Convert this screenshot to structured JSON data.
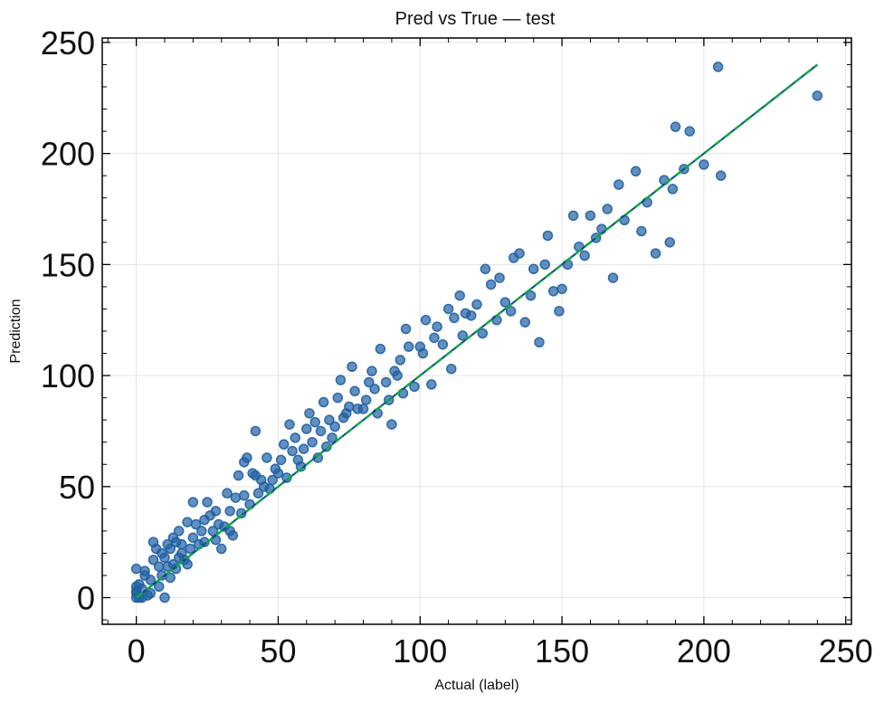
{
  "chart_data": {
    "type": "scatter",
    "title": "Pred vs True — test",
    "xlabel": "Actual (label)",
    "ylabel": "Prediction",
    "xlim": [
      -12,
      252
    ],
    "ylim": [
      -12,
      252
    ],
    "xticks": [
      0,
      50,
      100,
      150,
      200,
      250
    ],
    "yticks": [
      0,
      50,
      100,
      150,
      200,
      250
    ],
    "xtick_labels": [
      "0",
      "50",
      "100",
      "150",
      "200",
      "250"
    ],
    "ytick_labels": [
      "0",
      "50",
      "100",
      "150",
      "200",
      "250"
    ],
    "grid": true,
    "colors": {
      "points": "#1f5fa3",
      "fit_line": "#0b4a80",
      "identity_line": "#12a64a"
    },
    "fit_line": {
      "x": [
        0,
        240
      ],
      "y": [
        0,
        240
      ]
    },
    "identity_line": {
      "x": [
        0,
        240
      ],
      "y": [
        0,
        240
      ],
      "style": "dashed"
    },
    "series": [
      {
        "x": [
          0,
          0,
          0,
          0,
          0,
          1,
          1,
          2,
          2,
          3,
          3,
          4,
          5,
          5,
          6,
          6,
          7,
          8,
          8,
          9,
          9,
          10,
          10,
          11,
          11,
          12,
          12,
          13,
          13,
          14,
          14,
          15,
          15,
          16,
          16,
          17,
          18,
          18,
          19,
          20,
          20,
          21,
          22,
          23,
          24,
          24,
          25,
          26,
          27,
          28,
          28,
          29,
          30,
          31,
          32,
          33,
          33,
          34,
          35,
          36,
          37,
          38,
          38,
          39,
          40,
          41,
          42,
          42,
          43,
          44,
          45,
          46,
          47,
          48,
          49,
          50,
          51,
          52,
          53,
          54,
          55,
          56,
          57,
          58,
          59,
          60,
          61,
          62,
          63,
          64,
          65,
          66,
          67,
          68,
          69,
          70,
          71,
          72,
          73,
          74,
          75,
          76,
          77,
          78,
          80,
          81,
          82,
          83,
          84,
          85,
          86,
          88,
          89,
          90,
          91,
          92,
          93,
          94,
          95,
          96,
          98,
          100,
          101,
          102,
          104,
          105,
          106,
          108,
          110,
          111,
          112,
          114,
          115,
          116,
          118,
          120,
          122,
          123,
          125,
          127,
          128,
          130,
          132,
          133,
          135,
          137,
          139,
          140,
          142,
          144,
          145,
          147,
          149,
          150,
          152,
          154,
          156,
          158,
          160,
          162,
          164,
          166,
          168,
          170,
          172,
          176,
          178,
          180,
          183,
          186,
          188,
          189,
          190,
          193,
          195,
          200,
          205,
          206,
          240
        ],
        "y": [
          0,
          2,
          3,
          13,
          5,
          0,
          6,
          0,
          4,
          10,
          12,
          1,
          2,
          8,
          17,
          25,
          22,
          5,
          14,
          10,
          20,
          18,
          0,
          24,
          14,
          9,
          22,
          15,
          27,
          13,
          25,
          30,
          18,
          24,
          20,
          17,
          34,
          15,
          22,
          43,
          27,
          33,
          24,
          30,
          35,
          25,
          43,
          37,
          30,
          39,
          26,
          33,
          22,
          32,
          47,
          39,
          30,
          28,
          45,
          55,
          38,
          61,
          46,
          63,
          42,
          56,
          55,
          75,
          47,
          53,
          50,
          63,
          49,
          53,
          58,
          56,
          62,
          69,
          54,
          78,
          66,
          72,
          62,
          59,
          67,
          76,
          83,
          70,
          79,
          63,
          75,
          88,
          68,
          80,
          72,
          77,
          90,
          98,
          81,
          83,
          86,
          104,
          93,
          85,
          85,
          89,
          97,
          102,
          94,
          83,
          112,
          97,
          89,
          78,
          102,
          100,
          107,
          92,
          121,
          113,
          95,
          113,
          110,
          125,
          96,
          117,
          122,
          114,
          130,
          103,
          126,
          136,
          118,
          128,
          127,
          132,
          119,
          148,
          141,
          125,
          144,
          133,
          129,
          153,
          155,
          124,
          136,
          148,
          115,
          150,
          163,
          138,
          129,
          139,
          150,
          172,
          158,
          154,
          172,
          162,
          166,
          175,
          144,
          186,
          170,
          192,
          165,
          178,
          155,
          188,
          160,
          184,
          212,
          193,
          210,
          195,
          239,
          190,
          226
        ]
      }
    ]
  }
}
